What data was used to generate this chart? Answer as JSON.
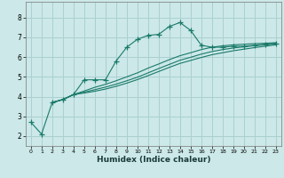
{
  "title": "",
  "xlabel": "Humidex (Indice chaleur)",
  "background_color": "#cce8e8",
  "grid_color": "#aad0d0",
  "line_color": "#1a7a6a",
  "xlim": [
    -0.5,
    23.5
  ],
  "ylim": [
    1.5,
    8.8
  ],
  "yticks": [
    2,
    3,
    4,
    5,
    6,
    7,
    8
  ],
  "xticks": [
    0,
    1,
    2,
    3,
    4,
    5,
    6,
    7,
    8,
    9,
    10,
    11,
    12,
    13,
    14,
    15,
    16,
    17,
    18,
    19,
    20,
    21,
    22,
    23
  ],
  "lines": [
    {
      "x": [
        0,
        1,
        2,
        3,
        4,
        5,
        6,
        7,
        8,
        9,
        10,
        11,
        12,
        13,
        14,
        15,
        16,
        17,
        18,
        19,
        20,
        21,
        22,
        23
      ],
      "y": [
        2.7,
        2.1,
        3.7,
        3.85,
        4.1,
        4.85,
        4.85,
        4.85,
        5.8,
        6.5,
        6.9,
        7.1,
        7.15,
        7.55,
        7.75,
        7.35,
        6.6,
        6.5,
        6.5,
        6.55,
        6.55,
        6.6,
        6.65,
        6.7
      ],
      "marker": "+"
    },
    {
      "x": [
        2,
        3,
        4,
        5,
        6,
        7,
        8,
        9,
        10,
        11,
        12,
        13,
        14,
        15,
        16,
        17,
        18,
        19,
        20,
        21,
        22,
        23
      ],
      "y": [
        3.7,
        3.85,
        4.1,
        4.18,
        4.27,
        4.38,
        4.52,
        4.68,
        4.86,
        5.06,
        5.27,
        5.48,
        5.68,
        5.83,
        5.98,
        6.12,
        6.22,
        6.32,
        6.4,
        6.48,
        6.55,
        6.62
      ],
      "marker": null
    },
    {
      "x": [
        2,
        3,
        4,
        5,
        6,
        7,
        8,
        9,
        10,
        11,
        12,
        13,
        14,
        15,
        16,
        17,
        18,
        19,
        20,
        21,
        22,
        23
      ],
      "y": [
        3.7,
        3.85,
        4.1,
        4.22,
        4.35,
        4.48,
        4.63,
        4.8,
        4.98,
        5.2,
        5.42,
        5.63,
        5.84,
        5.99,
        6.15,
        6.28,
        6.38,
        6.46,
        6.52,
        6.58,
        6.62,
        6.67
      ],
      "marker": null
    },
    {
      "x": [
        2,
        3,
        4,
        5,
        6,
        7,
        8,
        9,
        10,
        11,
        12,
        13,
        14,
        15,
        16,
        17,
        18,
        19,
        20,
        21,
        22,
        23
      ],
      "y": [
        3.7,
        3.85,
        4.1,
        4.28,
        4.47,
        4.62,
        4.8,
        5.0,
        5.2,
        5.44,
        5.65,
        5.87,
        6.07,
        6.22,
        6.38,
        6.5,
        6.57,
        6.62,
        6.65,
        6.68,
        6.7,
        6.73
      ],
      "marker": null
    }
  ]
}
